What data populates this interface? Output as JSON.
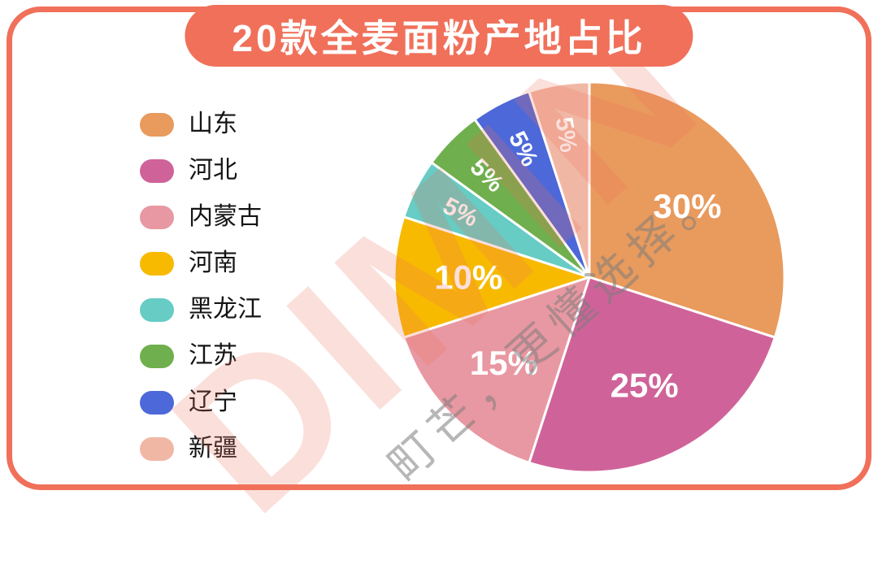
{
  "title": "20款全麦面粉产地占比",
  "colors": {
    "frame": "#F0705A",
    "title_bg": "#F0705A",
    "title_text": "#FFFFFF",
    "percent_label_text": "#FFFFFF",
    "legend_text": "#151515",
    "slice_stroke": "#FFFFFF"
  },
  "watermark": {
    "brand": "DIMIN",
    "slogan": "町芒，更懂选择。"
  },
  "chart_data": {
    "type": "pie",
    "title": "20款全麦面粉产地占比",
    "direction": "clockwise",
    "start_angle_deg": 0,
    "legend_position": "left",
    "unit": "%",
    "slices": [
      {
        "label": "山东",
        "value": 30,
        "percent_label": "30%",
        "color": "#E99A5D"
      },
      {
        "label": "河北",
        "value": 25,
        "percent_label": "25%",
        "color": "#CF6399"
      },
      {
        "label": "内蒙古",
        "value": 15,
        "percent_label": "15%",
        "color": "#E898A2"
      },
      {
        "label": "河南",
        "value": 10,
        "percent_label": "10%",
        "color": "#F7BA00"
      },
      {
        "label": "黑龙江",
        "value": 5,
        "percent_label": "5%",
        "color": "#66CCC4"
      },
      {
        "label": "江苏",
        "value": 5,
        "percent_label": "5%",
        "color": "#6FAF4D"
      },
      {
        "label": "辽宁",
        "value": 5,
        "percent_label": "5%",
        "color": "#4C68D9"
      },
      {
        "label": "新疆",
        "value": 5,
        "percent_label": "5%",
        "color": "#F1B7A5"
      }
    ]
  }
}
